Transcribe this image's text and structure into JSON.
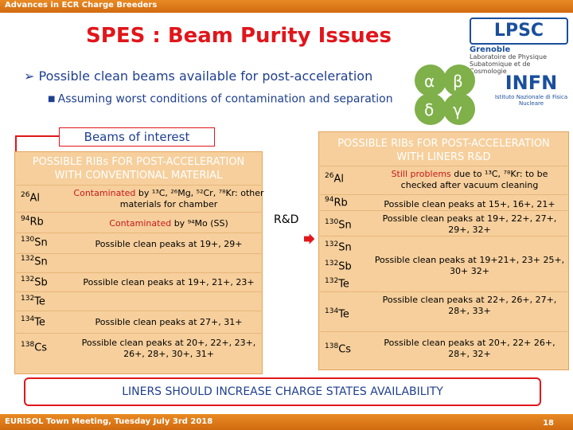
{
  "header": {
    "conference": "Advances in ECR Charge Breeders"
  },
  "title": "SPES : Beam Purity Issues",
  "logos": {
    "lpsc": {
      "mark": "LPSC",
      "sub1": "Grenoble",
      "sub2": "Laboratoire de Physique Subatomique et de Cosmologie"
    },
    "infn": {
      "mark": "INFN",
      "sub": "Istituto Nazionale di Fisica Nucleare"
    },
    "clover": {
      "letters": [
        "α",
        "β",
        "δ",
        "γ"
      ]
    }
  },
  "bullets": {
    "main": "Possible clean beams available for post-acceleration",
    "sub": "Assuming worst conditions of contamination and separation"
  },
  "beams_of_interest": "Beams of interest",
  "left_table": {
    "heading": [
      "POSSIBLE RIBs FOR POST-ACCELERATION",
      "WITH CONVENTIONAL MATERIAL"
    ],
    "rows": [
      {
        "mass": "26",
        "el": "Al",
        "note_red": "Contaminated",
        "note": " by ¹³C, ²⁶Mg, ⁵²Cr, ⁷⁸Kr: other materials for chamber"
      },
      {
        "mass": "94",
        "el": "Rb",
        "note_red": "Contaminated",
        "note": " by ⁹⁴Mo (SS)"
      },
      {
        "mass": "130",
        "el": "Sn",
        "note": "Possible clean peaks at 19+, 29+"
      },
      {
        "mass": "132",
        "el": "Sn",
        "note": ""
      },
      {
        "mass": "132",
        "el": "Sb",
        "note": "Possible clean peaks at 19+, 21+, 23+"
      },
      {
        "mass": "132",
        "el": "Te",
        "note": ""
      },
      {
        "mass": "134",
        "el": "Te",
        "note": "Possible clean peaks at 27+, 31+"
      },
      {
        "mass": "138",
        "el": "Cs",
        "note": "Possible clean peaks at 20+, 22+, 23+, 26+, 28+, 30+, 31+"
      }
    ]
  },
  "rnd": "R&D",
  "right_table": {
    "heading": [
      "POSSIBLE RIBs FOR POST-ACCELERATION",
      "WITH LINERS R&D"
    ],
    "rows": [
      {
        "mass": "26",
        "el": "Al",
        "note_red": "Still problems",
        "note": " due to ¹³C, ⁷⁸Kr: to be checked after vacuum cleaning"
      },
      {
        "mass": "94",
        "el": "Rb",
        "note": "Possible clean peaks at 15+, 16+, 21+"
      },
      {
        "mass": "130",
        "el": "Sn",
        "note": "Possible clean peaks at 19+, 22+, 27+, 29+, 32+"
      },
      {
        "mass": "132",
        "el": "Sn",
        "note": ""
      },
      {
        "mass": "132",
        "el": "Sb",
        "note": "Possible clean peaks at 19+21+, 23+ 25+, 30+ 32+"
      },
      {
        "mass": "132",
        "el": "Te",
        "note": ""
      },
      {
        "mass": "134",
        "el": "Te",
        "note": "Possible clean peaks at 22+, 26+, 27+, 28+, 33+"
      },
      {
        "mass": "138",
        "el": "Cs",
        "note": "Possible clean peaks at 20+, 22+ 26+, 28+, 32+"
      }
    ]
  },
  "liners_statement": "LINERS SHOULD INCREASE CHARGE STATES AVAILABILITY",
  "footer": {
    "meeting": "EURISOL Town Meeting, Tuesday July 3rd 2018",
    "page": "18"
  },
  "colors": {
    "accent": "#e0161b",
    "bar": "#e07a1b",
    "panel": "#f6cf9c",
    "text": "#1f3f8f"
  }
}
